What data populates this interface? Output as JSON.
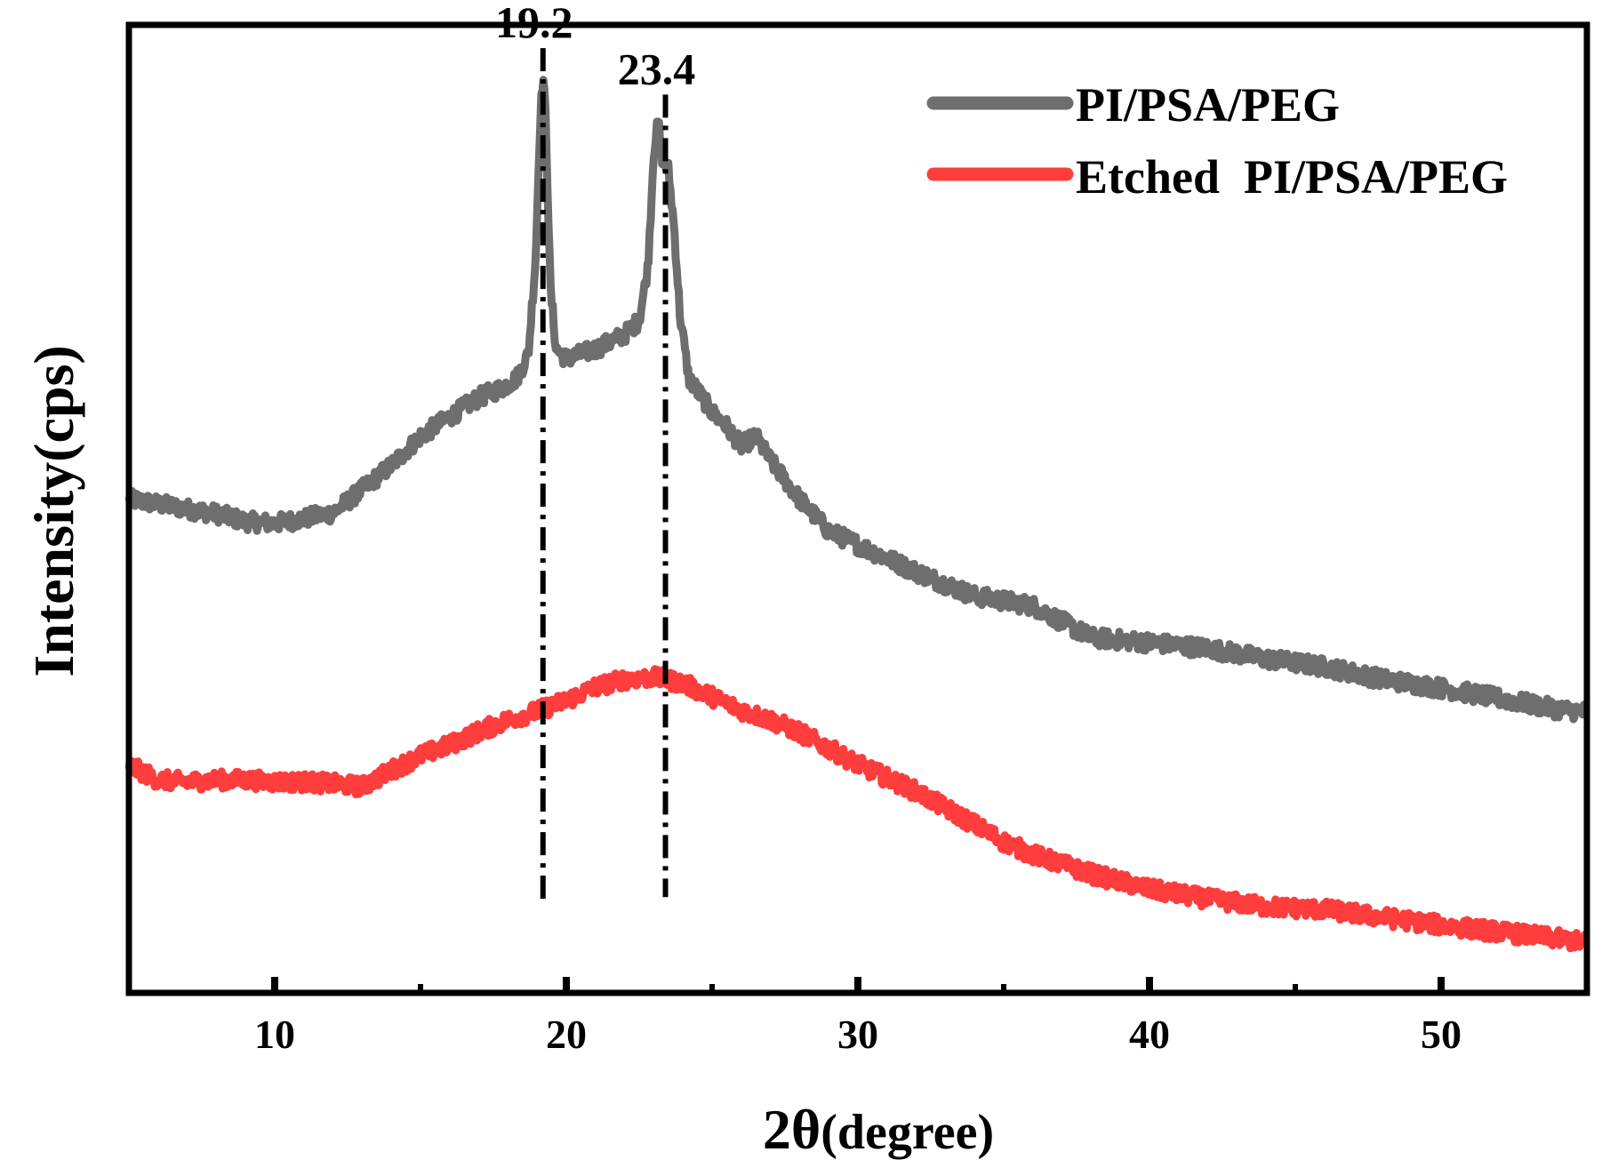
{
  "chart_data": {
    "type": "line",
    "title": "",
    "xlabel_main": "2θ",
    "xlabel_unit": "(degree)",
    "ylabel": "Intensity(cps)",
    "xlim": [
      5,
      55
    ],
    "ylim": [
      0,
      100
    ],
    "x_ticks": [
      10,
      20,
      30,
      40,
      50
    ],
    "x_minor_ticks": [
      15,
      25,
      35,
      45
    ],
    "y_ticks_shown": false,
    "legend_position": "top-right",
    "series": [
      {
        "name": "PI/PSA/PEG",
        "color": "#6e6e6e",
        "points": [
          [
            5,
            51
          ],
          [
            6,
            50.5
          ],
          [
            7,
            50
          ],
          [
            8,
            49.5
          ],
          [
            9,
            48.7
          ],
          [
            10,
            48.5
          ],
          [
            11,
            49
          ],
          [
            12,
            49.6
          ],
          [
            13,
            52
          ],
          [
            14,
            54.5
          ],
          [
            15,
            57.5
          ],
          [
            16,
            59.5
          ],
          [
            17,
            61.5
          ],
          [
            17.8,
            62.5
          ],
          [
            18.3,
            63.5
          ],
          [
            18.7,
            66
          ],
          [
            18.95,
            76
          ],
          [
            19.1,
            90
          ],
          [
            19.2,
            95
          ],
          [
            19.3,
            90
          ],
          [
            19.45,
            73
          ],
          [
            19.65,
            66.5
          ],
          [
            20,
            65.5
          ],
          [
            21,
            66.5
          ],
          [
            22,
            68
          ],
          [
            22.5,
            69.5
          ],
          [
            22.8,
            75
          ],
          [
            23.0,
            87
          ],
          [
            23.15,
            90
          ],
          [
            23.3,
            86
          ],
          [
            23.5,
            85
          ],
          [
            23.7,
            79
          ],
          [
            23.9,
            70
          ],
          [
            24.2,
            63.5
          ],
          [
            25,
            60
          ],
          [
            25.5,
            58.5
          ],
          [
            26,
            56.5
          ],
          [
            26.5,
            57.5
          ],
          [
            27,
            55
          ],
          [
            28,
            51
          ],
          [
            29,
            47.7
          ],
          [
            30,
            46.3
          ],
          [
            32,
            43.5
          ],
          [
            34,
            41
          ],
          [
            36,
            40
          ],
          [
            38,
            36.7
          ],
          [
            40,
            36.2
          ],
          [
            42,
            35.6
          ],
          [
            44,
            34.5
          ],
          [
            46,
            33.7
          ],
          [
            48,
            32.4
          ],
          [
            50,
            31.5
          ],
          [
            52,
            30.4
          ],
          [
            54,
            29.3
          ],
          [
            55,
            29
          ]
        ]
      },
      {
        "name": "Etched  PI/PSA/PEG",
        "color": "#ff3d3d",
        "points": [
          [
            5,
            23.5
          ],
          [
            6,
            22
          ],
          [
            7,
            21.8
          ],
          [
            8,
            22
          ],
          [
            9,
            22
          ],
          [
            10,
            21.8
          ],
          [
            11,
            21.8
          ],
          [
            12,
            21.6
          ],
          [
            13,
            21.3
          ],
          [
            14,
            23
          ],
          [
            15,
            24.5
          ],
          [
            16,
            25.6
          ],
          [
            17,
            27
          ],
          [
            18,
            28.2
          ],
          [
            19,
            29.1
          ],
          [
            20,
            30.2
          ],
          [
            21,
            31.6
          ],
          [
            22,
            32.4
          ],
          [
            23,
            32.6
          ],
          [
            24,
            32
          ],
          [
            25,
            30.6
          ],
          [
            26,
            29.2
          ],
          [
            27,
            28.2
          ],
          [
            28,
            26.9
          ],
          [
            30,
            23.6
          ],
          [
            32,
            20.8
          ],
          [
            34,
            17.4
          ],
          [
            35,
            15.6
          ],
          [
            36,
            14.3
          ],
          [
            38,
            12.3
          ],
          [
            40,
            10.7
          ],
          [
            42,
            9.7
          ],
          [
            44,
            8.9
          ],
          [
            46,
            8.6
          ],
          [
            48,
            7.8
          ],
          [
            50,
            7
          ],
          [
            52,
            6.3
          ],
          [
            54,
            5.6
          ],
          [
            55,
            5.2
          ]
        ]
      }
    ],
    "reference_lines": [
      {
        "x": 19.2,
        "label": "19.2",
        "y_top": 97.6,
        "y_bottom": 9
      },
      {
        "x": 23.4,
        "label": "23.4",
        "y_top": 92.8,
        "y_bottom": 9.9
      }
    ]
  }
}
